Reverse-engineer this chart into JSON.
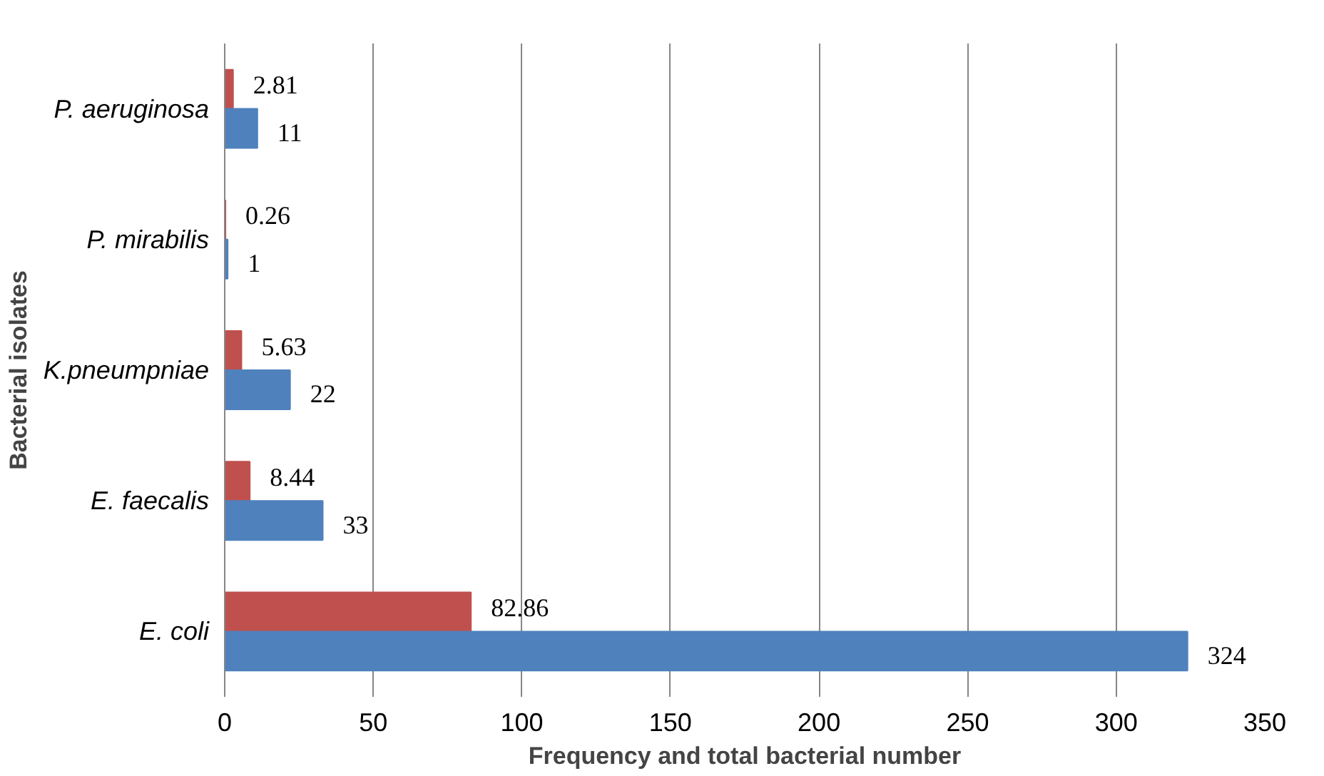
{
  "chart_data": {
    "type": "bar",
    "orientation": "horizontal",
    "xlabel": "Frequency and total bacterial number",
    "ylabel": "Bacterial isolates",
    "categories": [
      "P. aeruginosa",
      "P. mirabilis",
      "K.pneumpniae",
      "E. faecalis",
      "E. coli"
    ],
    "series": [
      {
        "color": "#c0504d",
        "values": [
          2.81,
          0.26,
          5.63,
          8.44,
          82.86
        ]
      },
      {
        "color": "#4f81bd",
        "values": [
          11,
          1,
          22,
          33,
          324
        ]
      }
    ],
    "xlim": [
      0,
      350
    ],
    "xticks": [
      0,
      50,
      100,
      150,
      200,
      250,
      300,
      350
    ],
    "grid": "x",
    "data_labels": true
  }
}
